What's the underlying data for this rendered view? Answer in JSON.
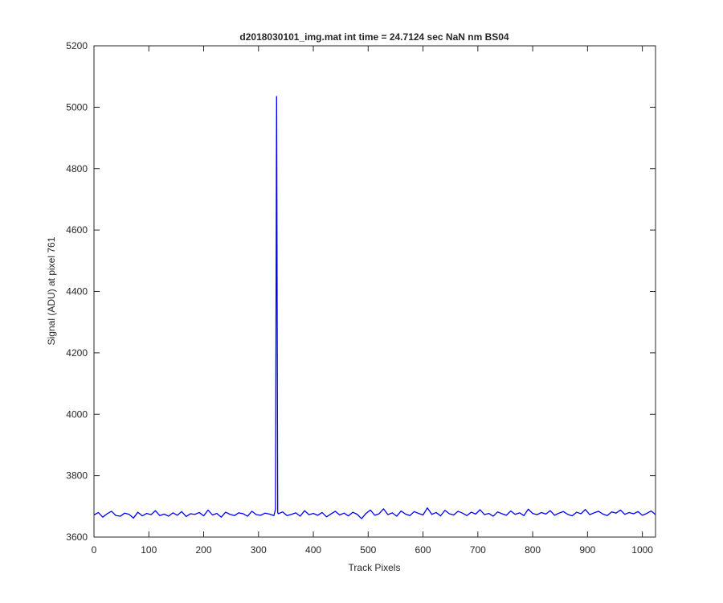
{
  "chart_data": {
    "type": "line",
    "title": "d2018030101_img.mat int time = 24.7124 sec  NaN nm BS04",
    "x_label": "Track Pixels",
    "y_label": "Signal (ADU) at pixel 761",
    "xlim": [
      0,
      1024
    ],
    "ylim": [
      3600,
      5200
    ],
    "xticks": [
      0,
      100,
      200,
      300,
      400,
      500,
      600,
      700,
      800,
      900,
      1000
    ],
    "yticks": [
      3600,
      3800,
      4000,
      4200,
      4400,
      4600,
      4800,
      5000,
      5200
    ],
    "grid": false,
    "x": [
      0,
      8,
      16,
      24,
      32,
      40,
      48,
      56,
      64,
      72,
      80,
      88,
      96,
      104,
      112,
      120,
      128,
      136,
      144,
      152,
      160,
      168,
      176,
      184,
      192,
      200,
      208,
      216,
      224,
      232,
      240,
      248,
      256,
      264,
      272,
      280,
      288,
      296,
      304,
      312,
      320,
      328,
      331,
      333,
      335,
      336,
      344,
      352,
      360,
      368,
      376,
      384,
      392,
      400,
      408,
      416,
      424,
      432,
      440,
      448,
      456,
      464,
      472,
      480,
      488,
      496,
      504,
      512,
      520,
      528,
      536,
      544,
      552,
      560,
      568,
      576,
      584,
      592,
      600,
      608,
      616,
      624,
      632,
      640,
      648,
      656,
      664,
      672,
      680,
      688,
      696,
      704,
      712,
      720,
      728,
      736,
      744,
      752,
      760,
      768,
      776,
      784,
      792,
      800,
      808,
      816,
      824,
      832,
      840,
      848,
      856,
      864,
      872,
      880,
      888,
      896,
      904,
      912,
      920,
      928,
      936,
      944,
      952,
      960,
      968,
      976,
      984,
      992,
      1000,
      1008,
      1016,
      1024
    ],
    "series": [
      {
        "color": "#0000ff",
        "values": [
          3672,
          3680,
          3665,
          3676,
          3684,
          3670,
          3668,
          3678,
          3674,
          3662,
          3681,
          3669,
          3677,
          3673,
          3686,
          3670,
          3675,
          3668,
          3679,
          3671,
          3683,
          3667,
          3676,
          3674,
          3680,
          3669,
          3688,
          3672,
          3677,
          3665,
          3681,
          3674,
          3670,
          3679,
          3676,
          3668,
          3684,
          3673,
          3671,
          3678,
          3675,
          3670,
          3690,
          5035,
          3680,
          3676,
          3682,
          3670,
          3674,
          3679,
          3668,
          3686,
          3673,
          3677,
          3671,
          3680,
          3666,
          3675,
          3684,
          3672,
          3678,
          3669,
          3681,
          3674,
          3660,
          3677,
          3688,
          3671,
          3676,
          3692,
          3673,
          3679,
          3668,
          3685,
          3675,
          3670,
          3683,
          3677,
          3672,
          3695,
          3674,
          3680,
          3669,
          3687,
          3676,
          3672,
          3684,
          3678,
          3670,
          3681,
          3675,
          3689,
          3673,
          3677,
          3668,
          3682,
          3676,
          3671,
          3685,
          3674,
          3679,
          3670,
          3691,
          3677,
          3673,
          3680,
          3675,
          3686,
          3671,
          3678,
          3683,
          3674,
          3669,
          3681,
          3676,
          3690,
          3673,
          3679,
          3684,
          3675,
          3670,
          3682,
          3678,
          3688,
          3674,
          3680,
          3676,
          3683,
          3671,
          3677,
          3685,
          3673
        ]
      }
    ]
  }
}
